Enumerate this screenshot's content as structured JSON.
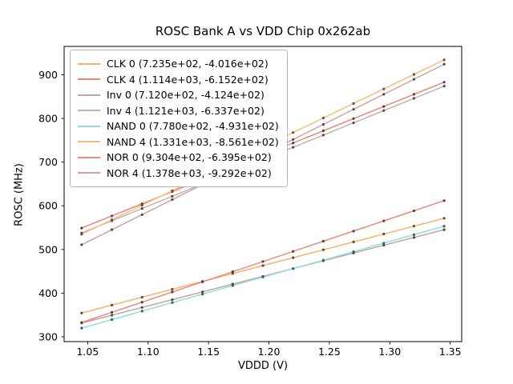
{
  "chart_data": {
    "type": "scatter",
    "title": "ROSC Bank A vs VDD Chip 0x262ab",
    "xlabel": "VDDD (V)",
    "ylabel": "ROSC (MHz)",
    "xlim": [
      1.0305,
      1.3595
    ],
    "ylim": [
      289,
      965
    ],
    "xticks": [
      1.05,
      1.1,
      1.15,
      1.2,
      1.25,
      1.3,
      1.35
    ],
    "xtick_labels": [
      "1.05",
      "1.10",
      "1.15",
      "1.20",
      "1.25",
      "1.30",
      "1.35"
    ],
    "yticks": [
      300,
      400,
      500,
      600,
      700,
      800,
      900
    ],
    "ytick_labels": [
      "300",
      "400",
      "500",
      "600",
      "700",
      "800",
      "900"
    ],
    "grid": false,
    "legend_position": "upper left",
    "x_points": [
      1.045,
      1.07,
      1.095,
      1.12,
      1.145,
      1.17,
      1.195,
      1.22,
      1.245,
      1.27,
      1.295,
      1.32,
      1.345
    ],
    "series": [
      {
        "name": "CLK 0 (7.235e+02, -4.016e+02)",
        "slope": 723.5,
        "intercept": -401.6,
        "color": "#f6b26b"
      },
      {
        "name": "CLK 4 (1.114e+03, -6.152e+02)",
        "slope": 1114.0,
        "intercept": -615.2,
        "color": "#ec8578"
      },
      {
        "name": "Inv 0 (7.120e+02, -4.124e+02)",
        "slope": 712.0,
        "intercept": -412.4,
        "color": "#c0a49e"
      },
      {
        "name": "Inv 4 (1.121e+03, -6.337e+02)",
        "slope": 1121.0,
        "intercept": -633.7,
        "color": "#bdb3b1"
      },
      {
        "name": "NAND 0 (7.780e+02, -4.931e+02)",
        "slope": 778.0,
        "intercept": -493.1,
        "color": "#8edee6"
      },
      {
        "name": "NAND 4 (1.331e+03, -8.561e+02)",
        "slope": 1331.0,
        "intercept": -856.1,
        "color": "#f9bc78"
      },
      {
        "name": "NOR 0 (9.304e+02, -6.395e+02)",
        "slope": 930.4,
        "intercept": -639.5,
        "color": "#ea8a7c"
      },
      {
        "name": "NOR 4 (1.378e+03, -9.292e+02)",
        "slope": 1378.0,
        "intercept": -929.2,
        "color": "#cfa3a8"
      }
    ]
  }
}
